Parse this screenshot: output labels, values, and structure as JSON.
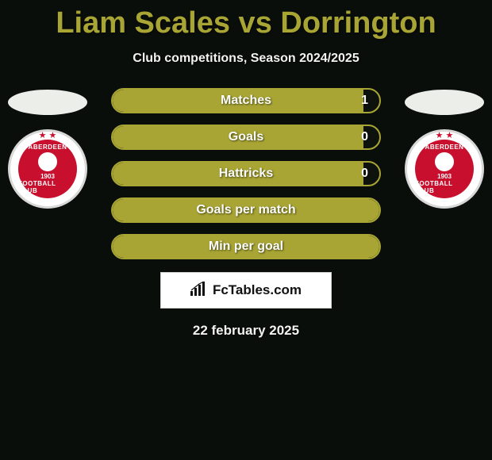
{
  "title": "Liam Scales vs Dorrington",
  "subtitle": "Club competitions, Season 2024/2025",
  "date": "22 february 2025",
  "logo_text": "FcTables.com",
  "colors": {
    "accent": "#a8a534",
    "bg": "#0a0e0a",
    "crest_red": "#c8102e",
    "white": "#ffffff"
  },
  "crest": {
    "top_text": "ABERDEEN",
    "bottom_text": "FOOTBALL CLUB",
    "year": "1903"
  },
  "bars": [
    {
      "label": "Matches",
      "value": "1",
      "fill_pct": 94
    },
    {
      "label": "Goals",
      "value": "0",
      "fill_pct": 94
    },
    {
      "label": "Hattricks",
      "value": "0",
      "fill_pct": 94
    },
    {
      "label": "Goals per match",
      "value": "",
      "fill_pct": 100
    },
    {
      "label": "Min per goal",
      "value": "",
      "fill_pct": 100
    }
  ]
}
